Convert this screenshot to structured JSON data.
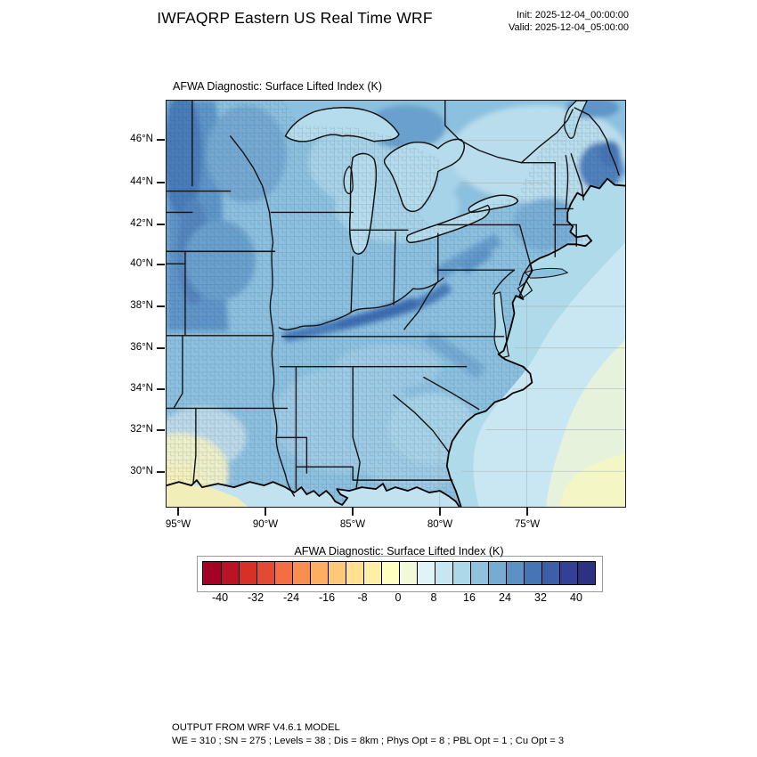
{
  "header": {
    "title": "IWFAQRP Eastern US Real Time WRF",
    "init": "Init: 2025-12-04_00:00:00",
    "valid": "Valid: 2025-12-04_05:00:00"
  },
  "map": {
    "title": "AFWA Diagnostic: Surface Lifted Index   (K)",
    "lat_ticks": [
      "46°N",
      "44°N",
      "42°N",
      "40°N",
      "38°N",
      "36°N",
      "34°N",
      "32°N",
      "30°N"
    ],
    "lon_ticks": [
      "95°W",
      "90°W",
      "85°W",
      "80°W",
      "75°W"
    ]
  },
  "colorbar": {
    "title": "AFWA Diagnostic: Surface Lifted Index  (K)",
    "tick_labels": [
      "-40",
      "-32",
      "-24",
      "-16",
      "-8",
      "0",
      "8",
      "16",
      "24",
      "32",
      "40"
    ],
    "min_value": -44,
    "max_value": 44,
    "interval": 4,
    "colors": [
      "#a50026",
      "#bb1326",
      "#d73027",
      "#e34a33",
      "#f46d43",
      "#f98e52",
      "#fdae61",
      "#fdc878",
      "#fee090",
      "#feefa8",
      "#ffffbf",
      "#f1f9d8",
      "#e0f3f8",
      "#c6e6f2",
      "#abd9e9",
      "#8fc3dd",
      "#74add1",
      "#5c91c3",
      "#4575b4",
      "#3c5fa7",
      "#343f98",
      "#2d3184"
    ]
  },
  "footer": {
    "line1": "OUTPUT FROM WRF V4.6.1 MODEL",
    "line2": "WE = 310 ; SN = 275 ; Levels = 38 ; Dis = 8km ; Phys Opt = 8 ; PBL Opt = 1 ; Cu Opt = 3"
  }
}
